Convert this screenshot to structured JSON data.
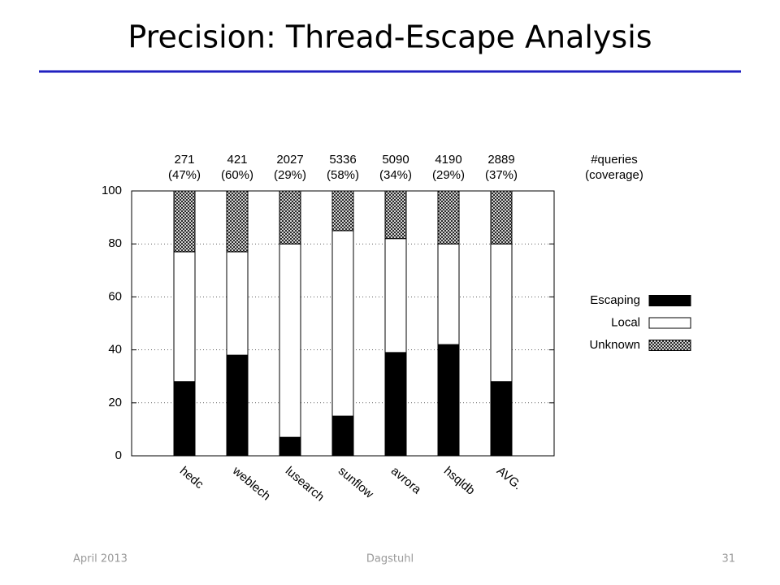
{
  "slide": {
    "title": "Precision: Thread-Escape Analysis",
    "footer": {
      "date": "April 2013",
      "venue": "Dagstuhl",
      "page": "31"
    }
  },
  "chart_data": {
    "type": "stacked-bar",
    "categories": [
      "hedc",
      "weblech",
      "lusearch",
      "sunflow",
      "avrora",
      "hsqldb",
      "AVG."
    ],
    "series": [
      {
        "name": "Escaping",
        "color": "#000000",
        "values": [
          28,
          38,
          7,
          15,
          39,
          42,
          28
        ]
      },
      {
        "name": "Local",
        "color": "#ffffff",
        "values": [
          49,
          39,
          73,
          70,
          43,
          38,
          52
        ]
      },
      {
        "name": "Unknown",
        "color": "#000000",
        "pattern": "crosshatch",
        "values": [
          23,
          23,
          20,
          15,
          18,
          20,
          20
        ]
      }
    ],
    "queries": [
      271,
      421,
      2027,
      5336,
      5090,
      4190,
      2889
    ],
    "coverage_labels": [
      "(47%)",
      "(60%)",
      "(29%)",
      "(58%)",
      "(34%)",
      "(29%)",
      "(37%)"
    ],
    "queries_header": "#queries",
    "coverage_header": "(coverage)",
    "ylim": [
      0,
      100
    ],
    "yticks": [
      0,
      20,
      40,
      60,
      80,
      100
    ],
    "grid": true,
    "legend": "right"
  }
}
